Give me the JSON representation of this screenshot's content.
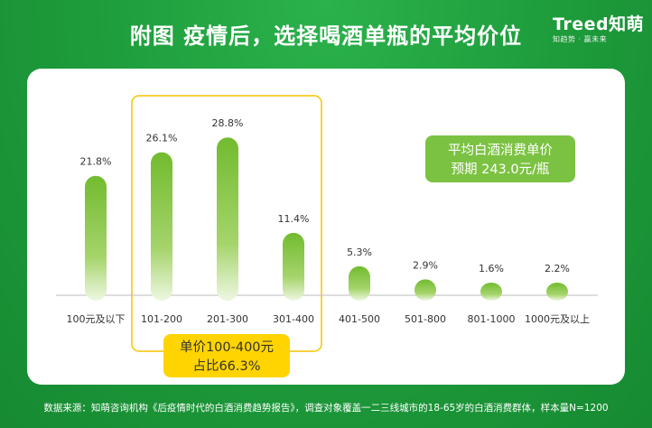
{
  "title": "附图   疫情后，选择喝酒单瓶的平均价位",
  "logo": {
    "brand": "Treed知萌",
    "slogan": "知趋势 · 赢未来"
  },
  "average_box": {
    "line1": "平均白酒消费单价",
    "line2": "预期 243.0元/瓶"
  },
  "highlight_box": {
    "line1": "单价100-400元",
    "line2": "占比66.3%"
  },
  "footer": "数据来源：知萌咨询机构《后疫情时代的白酒消费趋势报告》，调查对象覆盖一二三线城市的18-65岁的白酒消费群体，样本量N=1200",
  "colors": {
    "bar": "#7bc13a",
    "highlight_border": "#f5c400",
    "highlight_fill": "#ffd400",
    "badge": "#7cc242",
    "background": "#1f9a3c"
  },
  "chart_data": {
    "type": "bar",
    "categories": [
      "100元及以下",
      "101-200",
      "201-300",
      "301-400",
      "401-500",
      "501-800",
      "801-1000",
      "1000元及以上"
    ],
    "values": [
      21.8,
      26.1,
      28.8,
      11.4,
      5.3,
      2.9,
      1.6,
      2.2
    ],
    "labels": [
      "21.8%",
      "26.1%",
      "28.8%",
      "11.4%",
      "5.3%",
      "2.9%",
      "1.6%",
      "2.2%"
    ],
    "title": "",
    "xlabel": "",
    "ylabel": "",
    "ylim": [
      0,
      32
    ],
    "grid": false,
    "highlight_categories": [
      "101-200",
      "201-300",
      "301-400"
    ]
  }
}
